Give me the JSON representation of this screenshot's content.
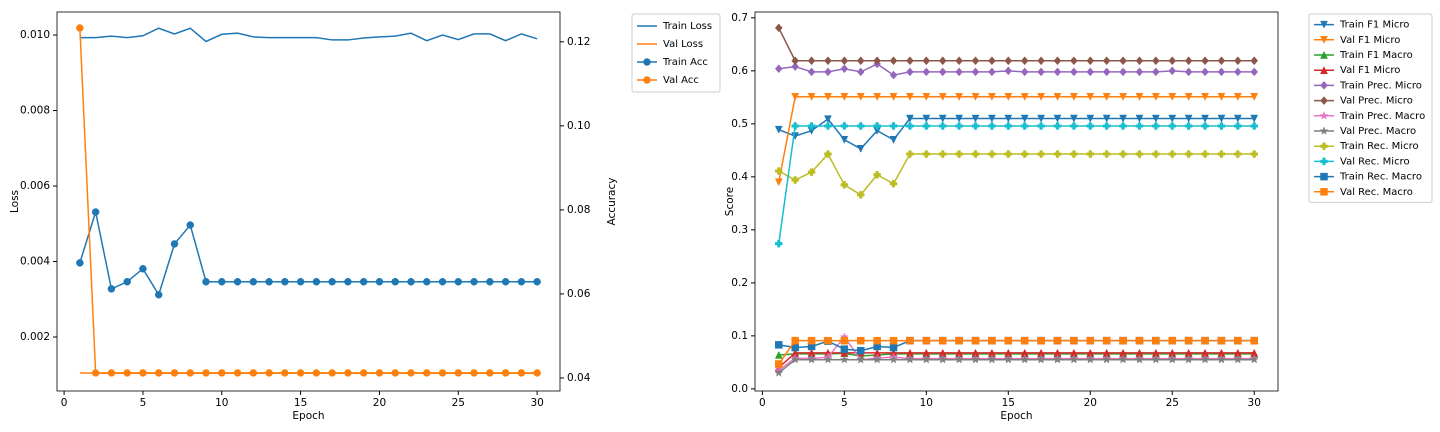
{
  "chart_data": [
    {
      "type": "line",
      "x_label": "Epoch",
      "y_label": "Loss",
      "y2_label": "Accuracy",
      "x": [
        1,
        2,
        3,
        4,
        5,
        6,
        7,
        8,
        9,
        10,
        11,
        12,
        13,
        14,
        15,
        16,
        17,
        18,
        19,
        20,
        21,
        22,
        23,
        24,
        25,
        26,
        27,
        28,
        29,
        30
      ],
      "xlim": [
        -0.45,
        31.45
      ],
      "xticks": [
        0,
        5,
        10,
        15,
        20,
        25,
        30
      ],
      "ylim": [
        0.00057,
        0.01061
      ],
      "yticks": [
        0.002,
        0.004,
        0.006,
        0.008,
        {
          "value": 0.01,
          "label": "0.010"
        }
      ],
      "y2lim": [
        0.0369,
        0.1271
      ],
      "y2ticks": [
        0.04,
        0.06,
        0.08,
        {
          "value": 0.1,
          "label": "0.10"
        },
        0.12
      ],
      "series": [
        {
          "name": "Train Loss",
          "color": "#1f77b4",
          "marker": null,
          "values": [
            0.00993,
            0.00993,
            0.00997,
            0.00993,
            0.00998,
            0.01018,
            0.01003,
            0.01018,
            0.00983,
            0.01002,
            0.01005,
            0.00995,
            0.00993,
            0.00993,
            0.00993,
            0.00993,
            0.00987,
            0.00987,
            0.00992,
            0.00995,
            0.00997,
            0.01005,
            0.00985,
            0.01,
            0.00988,
            0.01003,
            0.01003,
            0.00985,
            0.01003,
            0.0099
          ]
        },
        {
          "name": "Val Loss",
          "color": "#ff7f0e",
          "marker": null,
          "values": [
            0.00105,
            0.00104,
            0.00104,
            0.00104,
            0.00104,
            0.00104,
            0.00104,
            0.00104,
            0.00104,
            0.00104,
            0.00104,
            0.00104,
            0.00104,
            0.00104,
            0.00104,
            0.00104,
            0.00104,
            0.00104,
            0.00104,
            0.00104,
            0.00104,
            0.00104,
            0.00104,
            0.00104,
            0.00104,
            0.00104,
            0.00104,
            0.00104,
            0.00104,
            0.00104
          ]
        },
        {
          "name": "Train Acc",
          "color": "#1f77b4",
          "marker": "o",
          "axis": "y2",
          "values": [
            0.0674,
            0.0795,
            0.0612,
            0.0629,
            0.066,
            0.0598,
            0.0719,
            0.0764,
            0.0629,
            0.0629,
            0.0629,
            0.0629,
            0.0629,
            0.0629,
            0.0629,
            0.0629,
            0.0629,
            0.0629,
            0.0629,
            0.0629,
            0.0629,
            0.0629,
            0.0629,
            0.0629,
            0.0629,
            0.0629,
            0.0629,
            0.0629,
            0.0629,
            0.0629
          ]
        },
        {
          "name": "Val Acc",
          "color": "#ff7f0e",
          "marker": "o",
          "axis": "y2",
          "values": [
            0.1233,
            0.0412,
            0.0412,
            0.0412,
            0.0412,
            0.0412,
            0.0412,
            0.0412,
            0.0412,
            0.0412,
            0.0412,
            0.0412,
            0.0412,
            0.0412,
            0.0412,
            0.0412,
            0.0412,
            0.0412,
            0.0412,
            0.0412,
            0.0412,
            0.0412,
            0.0412,
            0.0412,
            0.0412,
            0.0412,
            0.0412,
            0.0412,
            0.0412,
            0.0412
          ]
        }
      ]
    },
    {
      "type": "line",
      "x_label": "Epoch",
      "y_label": "Score",
      "x": [
        1,
        2,
        3,
        4,
        5,
        6,
        7,
        8,
        9,
        10,
        11,
        12,
        13,
        14,
        15,
        16,
        17,
        18,
        19,
        20,
        21,
        22,
        23,
        24,
        25,
        26,
        27,
        28,
        29,
        30
      ],
      "xlim": [
        -0.45,
        31.45
      ],
      "xticks": [
        0,
        5,
        10,
        15,
        20,
        25,
        30
      ],
      "ylim": [
        -0.004,
        0.711
      ],
      "yticks": [
        {
          "value": 0,
          "label": "0.0"
        },
        0.1,
        0.2,
        0.3,
        0.4,
        0.5,
        0.6,
        0.7
      ],
      "series": [
        {
          "name": "Train F1 Micro",
          "color": "#1f77b4",
          "marker": "v",
          "values": [
            0.489,
            0.477,
            0.487,
            0.509,
            0.47,
            0.453,
            0.487,
            0.47,
            0.51,
            0.51,
            0.51,
            0.51,
            0.51,
            0.51,
            0.51,
            0.51,
            0.51,
            0.51,
            0.51,
            0.51,
            0.51,
            0.51,
            0.51,
            0.51,
            0.51,
            0.51,
            0.51,
            0.51,
            0.51,
            0.51
          ]
        },
        {
          "name": "Val F1 Micro",
          "color": "#ff7f0e",
          "marker": "v",
          "values": [
            0.39,
            0.551,
            0.551,
            0.551,
            0.551,
            0.551,
            0.551,
            0.551,
            0.551,
            0.551,
            0.551,
            0.551,
            0.551,
            0.551,
            0.551,
            0.551,
            0.551,
            0.551,
            0.551,
            0.551,
            0.551,
            0.551,
            0.551,
            0.551,
            0.551,
            0.551,
            0.551,
            0.551,
            0.551,
            0.551
          ]
        },
        {
          "name": "Train F1 Macro",
          "color": "#2ca02c",
          "marker": "^",
          "values": [
            0.064,
            0.066,
            0.066,
            0.066,
            0.067,
            0.062,
            0.064,
            0.066,
            0.066,
            0.066,
            0.066,
            0.066,
            0.066,
            0.066,
            0.066,
            0.066,
            0.066,
            0.066,
            0.066,
            0.066,
            0.066,
            0.066,
            0.066,
            0.066,
            0.066,
            0.066,
            0.066,
            0.066,
            0.066,
            0.066
          ]
        },
        {
          "name": "Val F1 Micro",
          "color": "#d62728",
          "marker": "^",
          "values": [
            0.04,
            0.068,
            0.068,
            0.068,
            0.068,
            0.068,
            0.068,
            0.068,
            0.068,
            0.068,
            0.068,
            0.068,
            0.068,
            0.068,
            0.068,
            0.068,
            0.068,
            0.068,
            0.068,
            0.068,
            0.068,
            0.068,
            0.068,
            0.068,
            0.068,
            0.068,
            0.068,
            0.068,
            0.068,
            0.068
          ]
        },
        {
          "name": "Train Prec. Micro",
          "color": "#9467bd",
          "marker": "D",
          "values": [
            0.604,
            0.608,
            0.598,
            0.598,
            0.604,
            0.598,
            0.613,
            0.592,
            0.598,
            0.598,
            0.598,
            0.598,
            0.598,
            0.598,
            0.6,
            0.598,
            0.598,
            0.598,
            0.598,
            0.598,
            0.598,
            0.598,
            0.598,
            0.598,
            0.6,
            0.598,
            0.598,
            0.598,
            0.598,
            0.598
          ]
        },
        {
          "name": "Val Prec. Micro",
          "color": "#8c564b",
          "marker": "D",
          "values": [
            0.681,
            0.619,
            0.619,
            0.619,
            0.619,
            0.619,
            0.619,
            0.619,
            0.619,
            0.619,
            0.619,
            0.619,
            0.619,
            0.619,
            0.619,
            0.619,
            0.619,
            0.619,
            0.619,
            0.619,
            0.619,
            0.619,
            0.619,
            0.619,
            0.619,
            0.619,
            0.619,
            0.619,
            0.619,
            0.619
          ]
        },
        {
          "name": "Train Prec. Macro",
          "color": "#e377c2",
          "marker": "*",
          "values": [
            0.035,
            0.058,
            0.057,
            0.06,
            0.098,
            0.055,
            0.058,
            0.06,
            0.057,
            0.057,
            0.057,
            0.057,
            0.057,
            0.057,
            0.057,
            0.057,
            0.057,
            0.057,
            0.057,
            0.057,
            0.057,
            0.057,
            0.057,
            0.057,
            0.057,
            0.057,
            0.057,
            0.057,
            0.057,
            0.057
          ]
        },
        {
          "name": "Val Prec. Macro",
          "color": "#7f7f7f",
          "marker": "*",
          "values": [
            0.03,
            0.055,
            0.055,
            0.055,
            0.055,
            0.055,
            0.055,
            0.055,
            0.055,
            0.055,
            0.055,
            0.055,
            0.055,
            0.055,
            0.055,
            0.055,
            0.055,
            0.055,
            0.055,
            0.055,
            0.055,
            0.055,
            0.055,
            0.055,
            0.055,
            0.055,
            0.055,
            0.055,
            0.055,
            0.055
          ]
        },
        {
          "name": "Train Rec. Micro",
          "color": "#bcbd22",
          "marker": "P",
          "values": [
            0.411,
            0.394,
            0.409,
            0.443,
            0.385,
            0.366,
            0.404,
            0.387,
            0.443,
            0.443,
            0.443,
            0.443,
            0.443,
            0.443,
            0.443,
            0.443,
            0.443,
            0.443,
            0.443,
            0.443,
            0.443,
            0.443,
            0.443,
            0.443,
            0.443,
            0.443,
            0.443,
            0.443,
            0.443,
            0.443
          ]
        },
        {
          "name": "Val Rec. Micro",
          "color": "#17becf",
          "marker": "P",
          "values": [
            0.274,
            0.496,
            0.496,
            0.496,
            0.496,
            0.496,
            0.496,
            0.496,
            0.496,
            0.496,
            0.496,
            0.496,
            0.496,
            0.496,
            0.496,
            0.496,
            0.496,
            0.496,
            0.496,
            0.496,
            0.496,
            0.496,
            0.496,
            0.496,
            0.496,
            0.496,
            0.496,
            0.496,
            0.496,
            0.496
          ]
        },
        {
          "name": "Train Rec. Macro",
          "color": "#1f77b4",
          "marker": "s",
          "values": [
            0.083,
            0.078,
            0.08,
            0.09,
            0.075,
            0.072,
            0.08,
            0.078,
            0.091,
            0.091,
            0.091,
            0.091,
            0.091,
            0.091,
            0.091,
            0.091,
            0.091,
            0.091,
            0.091,
            0.091,
            0.091,
            0.091,
            0.091,
            0.091,
            0.091,
            0.091,
            0.091,
            0.091,
            0.091,
            0.091
          ]
        },
        {
          "name": "Val Rec. Macro",
          "color": "#ff7f0e",
          "marker": "s",
          "values": [
            0.047,
            0.091,
            0.091,
            0.091,
            0.091,
            0.091,
            0.091,
            0.091,
            0.091,
            0.091,
            0.091,
            0.091,
            0.091,
            0.091,
            0.091,
            0.091,
            0.091,
            0.091,
            0.091,
            0.091,
            0.091,
            0.091,
            0.091,
            0.091,
            0.091,
            0.091,
            0.091,
            0.091,
            0.091,
            0.091
          ]
        }
      ]
    }
  ]
}
